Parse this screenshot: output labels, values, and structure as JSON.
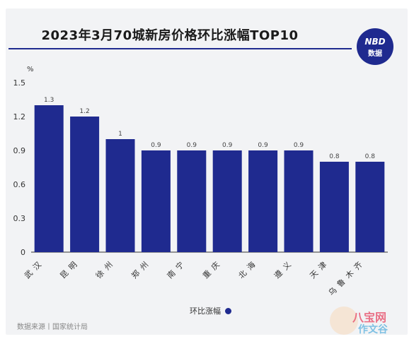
{
  "header": {
    "title": "2023年3月70城新房价格环比涨幅TOP10",
    "logo_line1": "NBD",
    "logo_line2": "数据"
  },
  "footer": {
    "source": "数据来源丨国家统计局"
  },
  "watermark": {
    "text1": "八宝网",
    "text2": "作文谷"
  },
  "colors": {
    "bar": "#1f2a8f",
    "accent": "#1f2a8f"
  },
  "chart_data": {
    "type": "bar",
    "title": "2023年3月70城新房价格环比涨幅TOP10",
    "ylabel": "%",
    "categories": [
      "武汉",
      "昆明",
      "徐州",
      "郑州",
      "南宁",
      "重庆",
      "北海",
      "遵义",
      "天津",
      "乌鲁木齐"
    ],
    "series": [
      {
        "name": "环比涨幅",
        "values": [
          1.3,
          1.2,
          1.0,
          0.9,
          0.9,
          0.9,
          0.9,
          0.9,
          0.8,
          0.8
        ]
      }
    ],
    "data_labels": [
      "1.3",
      "1.2",
      "1",
      "0.9",
      "0.9",
      "0.9",
      "0.9",
      "0.9",
      "0.8",
      "0.8"
    ],
    "yticks": [
      "0",
      "0.3",
      "0.6",
      "0.9",
      "1.2",
      "1.5"
    ],
    "ylim": [
      0,
      1.5
    ],
    "grid": false,
    "legend": "bottom"
  }
}
